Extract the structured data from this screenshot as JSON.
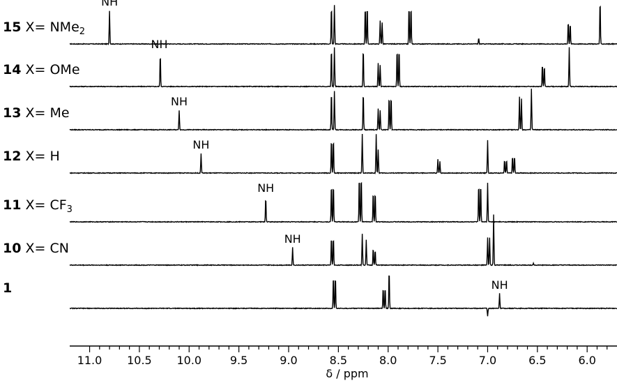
{
  "chart_data": {
    "type": "line",
    "xlabel": "δ / ppm",
    "xlim": [
      11.2,
      5.7
    ],
    "x_reversed": true,
    "x_ticks": [
      "11.0",
      "10.5",
      "10.0",
      "9.5",
      "9.0",
      "8.5",
      "8.0",
      "7.5",
      "7.0",
      "6.5",
      "6.0"
    ],
    "peak_annotation": "NH",
    "series": [
      {
        "number": "15",
        "label": "X= NMe",
        "sub": "2",
        "nh": 10.8,
        "peaks": [
          [
            10.8,
            0.85
          ],
          [
            8.57,
            1.0
          ],
          [
            8.54,
            1.0
          ],
          [
            8.23,
            1.0
          ],
          [
            8.21,
            1.0
          ],
          [
            8.08,
            0.6
          ],
          [
            8.06,
            0.55
          ],
          [
            7.79,
            1.0
          ],
          [
            7.77,
            1.0
          ],
          [
            7.09,
            0.15
          ],
          [
            6.19,
            0.6
          ],
          [
            6.17,
            0.55
          ],
          [
            5.87,
            1.15
          ]
        ]
      },
      {
        "number": "14",
        "label": "X= OMe",
        "sub": "",
        "nh": 10.3,
        "peaks": [
          [
            10.29,
            0.85
          ],
          [
            8.57,
            1.0
          ],
          [
            8.54,
            1.0
          ],
          [
            8.25,
            1.0
          ],
          [
            8.1,
            0.6
          ],
          [
            8.08,
            0.55
          ],
          [
            7.91,
            1.0
          ],
          [
            7.89,
            1.0
          ],
          [
            6.45,
            0.6
          ],
          [
            6.43,
            0.55
          ],
          [
            6.18,
            1.0
          ]
        ]
      },
      {
        "number": "13",
        "label": "X= Me",
        "sub": "",
        "nh": 10.1,
        "peaks": [
          [
            10.1,
            0.5
          ],
          [
            8.57,
            1.0
          ],
          [
            8.54,
            1.0
          ],
          [
            8.25,
            1.0
          ],
          [
            8.1,
            0.55
          ],
          [
            8.08,
            0.5
          ],
          [
            7.99,
            0.9
          ],
          [
            7.97,
            0.9
          ],
          [
            6.68,
            0.85
          ],
          [
            6.66,
            0.8
          ],
          [
            6.56,
            1.05
          ]
        ]
      },
      {
        "number": "12",
        "label": "X= H",
        "sub": "",
        "nh": 9.88,
        "peaks": [
          [
            9.88,
            0.5
          ],
          [
            8.57,
            0.9
          ],
          [
            8.55,
            0.9
          ],
          [
            8.26,
            1.0
          ],
          [
            8.12,
            1.0
          ],
          [
            8.1,
            0.6
          ],
          [
            7.5,
            0.35
          ],
          [
            7.48,
            0.3
          ],
          [
            7.0,
            0.85
          ],
          [
            6.83,
            0.35
          ],
          [
            6.81,
            0.35
          ],
          [
            6.75,
            0.45
          ],
          [
            6.73,
            0.45
          ]
        ]
      },
      {
        "number": "11",
        "label": "X= CF",
        "sub": "3",
        "nh": 9.23,
        "peaks": [
          [
            9.23,
            0.65
          ],
          [
            8.57,
            1.0
          ],
          [
            8.55,
            1.0
          ],
          [
            8.29,
            1.2
          ],
          [
            8.27,
            1.2
          ],
          [
            8.15,
            0.8
          ],
          [
            8.13,
            0.8
          ],
          [
            7.09,
            1.0
          ],
          [
            7.07,
            1.0
          ],
          [
            7.0,
            1.0
          ]
        ]
      },
      {
        "number": "10",
        "label": "X= CN",
        "sub": "",
        "nh": 8.96,
        "peaks": [
          [
            8.96,
            0.45
          ],
          [
            8.57,
            0.75
          ],
          [
            8.55,
            0.75
          ],
          [
            8.26,
            0.8
          ],
          [
            8.22,
            0.65
          ],
          [
            8.15,
            0.45
          ],
          [
            8.13,
            0.4
          ],
          [
            7.0,
            0.7
          ],
          [
            6.98,
            0.7
          ],
          [
            6.94,
            1.3
          ],
          [
            6.54,
            0.05
          ]
        ]
      },
      {
        "number": "1",
        "label": "",
        "sub": "",
        "nh": 6.88,
        "peaks": [
          [
            8.55,
            0.85
          ],
          [
            8.53,
            0.85
          ],
          [
            8.05,
            0.55
          ],
          [
            8.03,
            0.55
          ],
          [
            7.99,
            1.0
          ],
          [
            7.0,
            -0.2
          ],
          [
            6.88,
            0.38
          ]
        ]
      }
    ]
  }
}
